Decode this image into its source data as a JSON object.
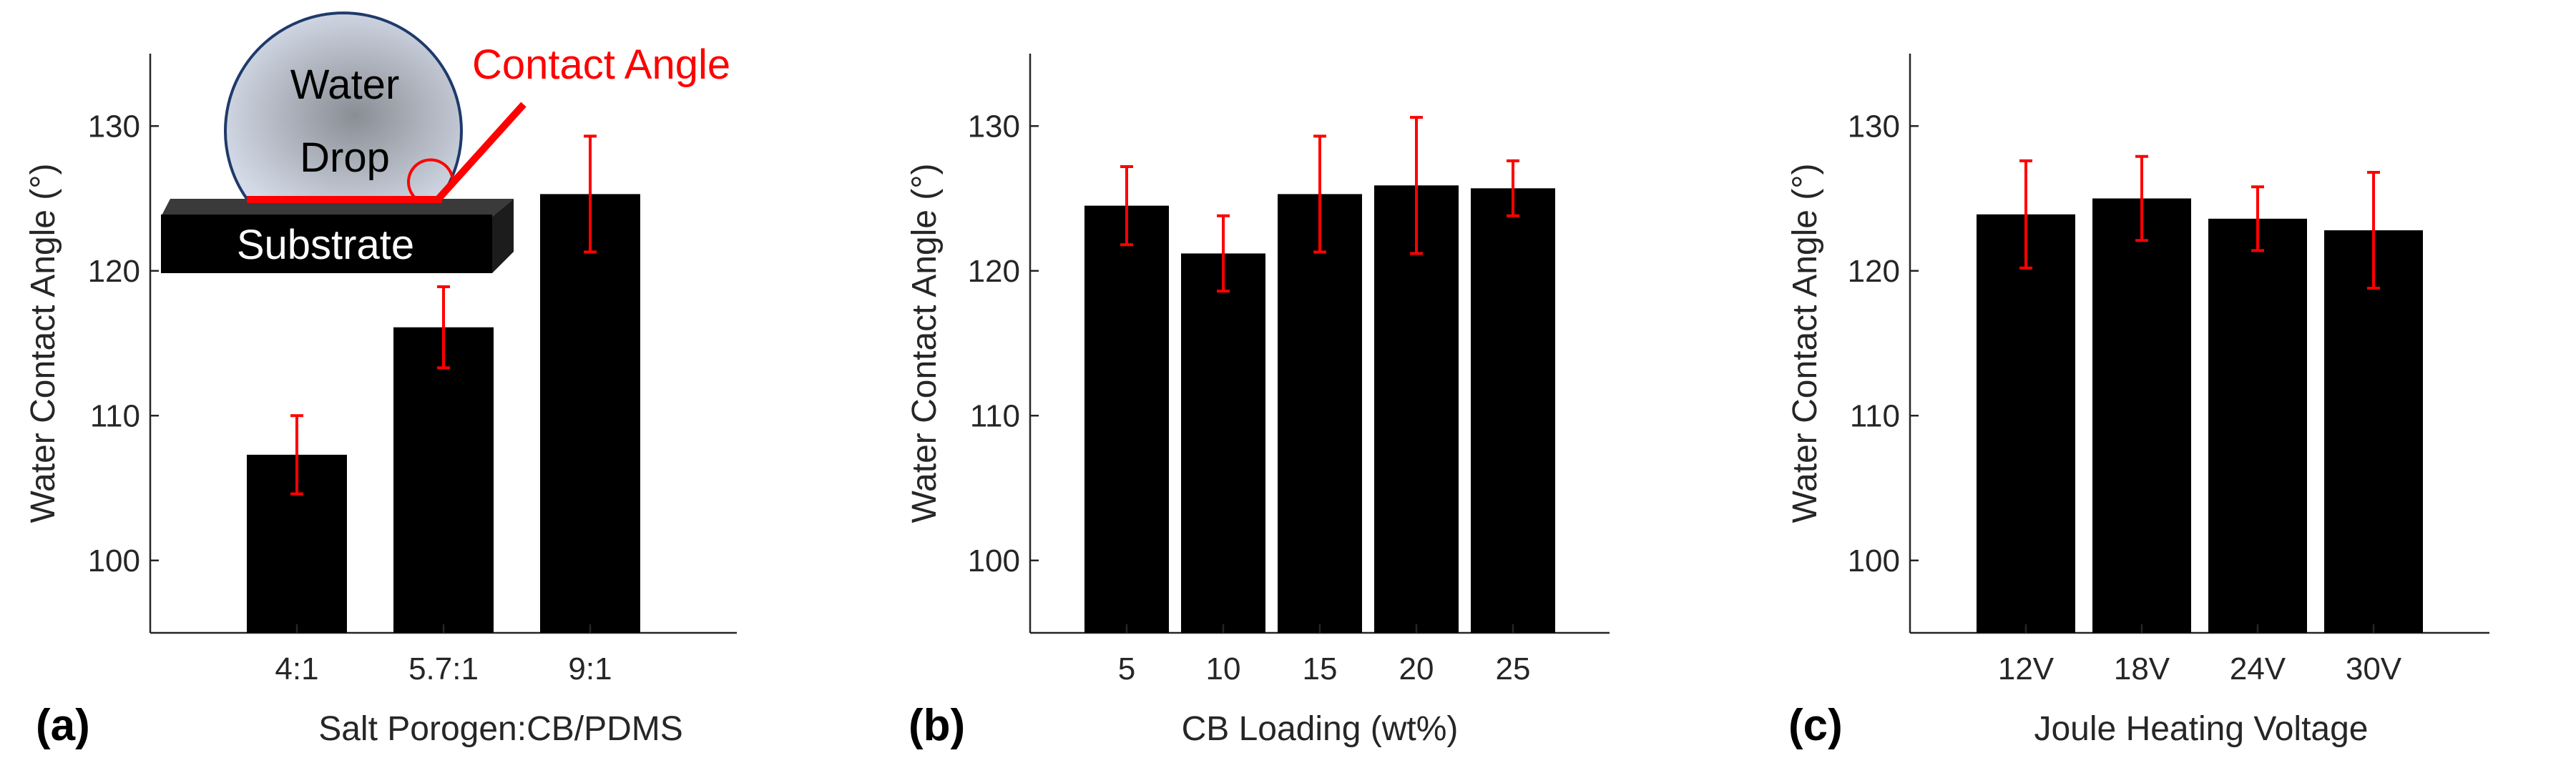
{
  "colors": {
    "bar": "#000000",
    "error_bar": "#ff0000",
    "axis": "#262626",
    "drop_center": "#8a8d94",
    "drop_edge": "#d4dbe8",
    "inset_red": "#ff0000"
  },
  "inset": {
    "drop_line1": "Water",
    "drop_line2": "Drop",
    "substrate": "Substrate",
    "angle_label": "Contact Angle"
  },
  "chart_data": [
    {
      "type": "bar",
      "panel_label": "(a)",
      "title": "",
      "xlabel": "Salt Porogen:CB/PDMS",
      "ylabel": "Water Contact Angle (°)",
      "ylim": [
        95,
        135
      ],
      "yticks": [
        100,
        110,
        120,
        130
      ],
      "categories": [
        "4:1",
        "5.7:1",
        "9:1"
      ],
      "values": [
        107.3,
        116.1,
        125.3
      ],
      "errors": [
        2.7,
        2.8,
        4.0
      ]
    },
    {
      "type": "bar",
      "panel_label": "(b)",
      "title": "",
      "xlabel": "CB Loading (wt%)",
      "ylabel": "Water Contact Angle (°)",
      "ylim": [
        95,
        135
      ],
      "yticks": [
        100,
        110,
        120,
        130
      ],
      "categories": [
        "5",
        "10",
        "15",
        "20",
        "25"
      ],
      "values": [
        124.5,
        121.2,
        125.3,
        125.9,
        125.7
      ],
      "errors": [
        2.7,
        2.6,
        4.0,
        4.7,
        1.9
      ]
    },
    {
      "type": "bar",
      "panel_label": "(c)",
      "title": "",
      "xlabel": "Joule Heating Voltage",
      "ylabel": "Water Contact Angle (°)",
      "ylim": [
        95,
        135
      ],
      "yticks": [
        100,
        110,
        120,
        130
      ],
      "categories": [
        "12V",
        "18V",
        "24V",
        "30V"
      ],
      "values": [
        123.9,
        125.0,
        123.6,
        122.8
      ],
      "errors": [
        3.7,
        2.9,
        2.2,
        4.0
      ]
    }
  ]
}
